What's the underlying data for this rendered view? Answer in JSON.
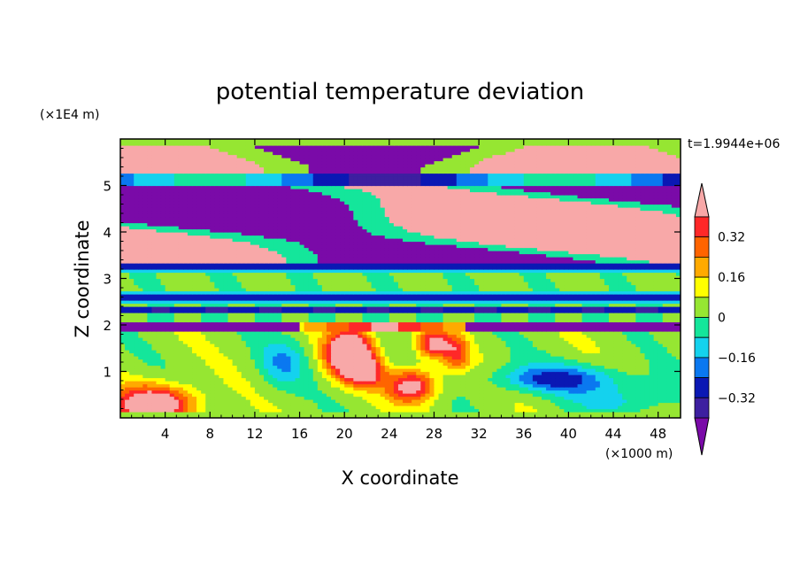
{
  "chart_data": {
    "type": "heatmap",
    "title": "potential temperature deviation",
    "xlabel": "X coordinate",
    "ylabel": "Z coordinate",
    "x_unit": "(×1000 m)",
    "y_unit": "(×1E4 m)",
    "time_label": "t=1.9944e+06",
    "xlim": [
      0,
      50
    ],
    "ylim": [
      0,
      6
    ],
    "x_ticks": [
      "4",
      "8",
      "12",
      "16",
      "20",
      "24",
      "28",
      "32",
      "36",
      "40",
      "44",
      "48"
    ],
    "y_ticks": [
      "1",
      "2",
      "3",
      "4",
      "5"
    ],
    "colorbar_ticks": [
      "0.32",
      "0.16",
      "0",
      "−0.16",
      "−0.32"
    ],
    "colorbar_colors": [
      "#7a0aa8",
      "#3d1fa0",
      "#0a18b4",
      "#0a78f0",
      "#14d2ee",
      "#14e69b",
      "#96e632",
      "#ffff00",
      "#ffaa00",
      "#ff6400",
      "#ff2828",
      "#f8a8a8"
    ],
    "contour_levels": [
      -0.4,
      -0.32,
      -0.24,
      -0.16,
      -0.08,
      0,
      0.08,
      0.16,
      0.24,
      0.32,
      0.4
    ]
  }
}
